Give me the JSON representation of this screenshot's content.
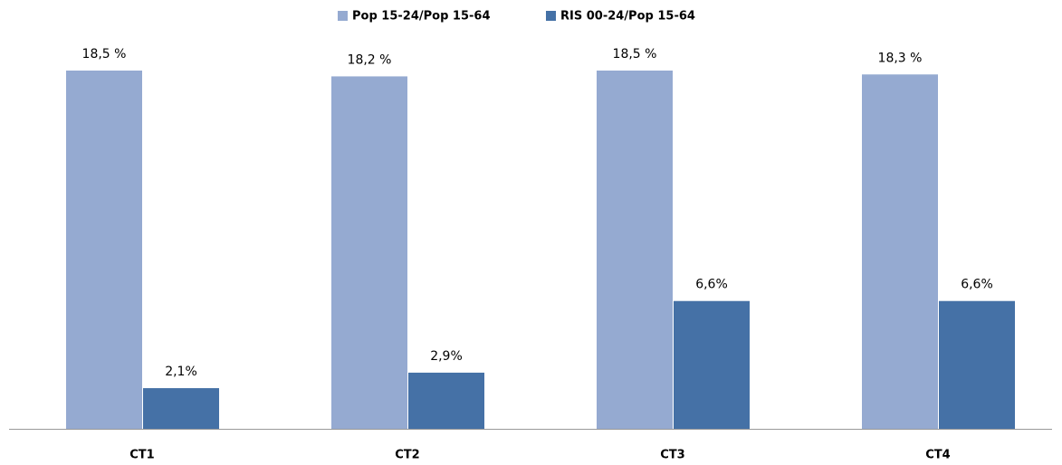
{
  "chart_data": {
    "type": "bar",
    "categories": [
      "CT1",
      "CT2",
      "CT3",
      "CT4"
    ],
    "series": [
      {
        "name": "Pop 15-24/Pop 15-64",
        "color": "#95aad1",
        "values": [
          18.5,
          18.2,
          18.5,
          18.3
        ],
        "value_labels": [
          "18,5 %",
          "18,2 %",
          "18,5 %",
          "18,3 %"
        ]
      },
      {
        "name": "RIS 00-24/Pop 15-64",
        "color": "#4571a6",
        "values": [
          2.1,
          2.9,
          6.6,
          6.6
        ],
        "value_labels": [
          "2,1%",
          "2,9%",
          "6,6%",
          "6,6%"
        ]
      }
    ],
    "legend": "top"
  }
}
